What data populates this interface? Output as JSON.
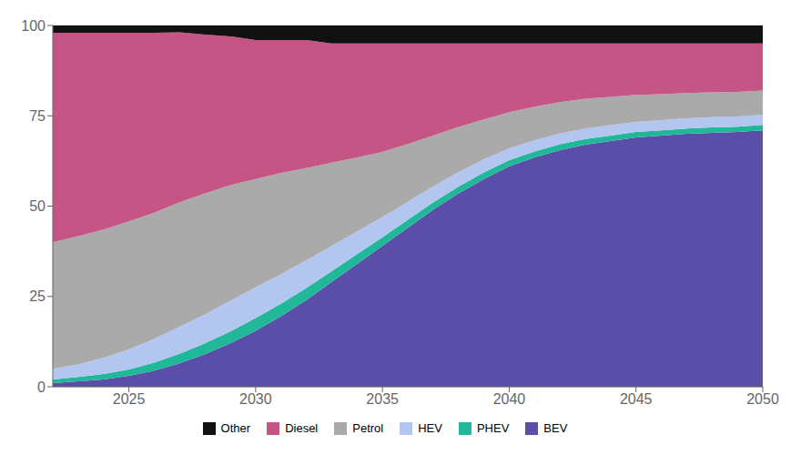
{
  "chart_data": {
    "type": "area",
    "stacked": true,
    "x": [
      2022,
      2023,
      2024,
      2025,
      2026,
      2027,
      2028,
      2029,
      2030,
      2031,
      2032,
      2033,
      2034,
      2035,
      2036,
      2037,
      2038,
      2039,
      2040,
      2041,
      2042,
      2043,
      2044,
      2045,
      2046,
      2047,
      2048,
      2049,
      2050
    ],
    "series": [
      {
        "name": "BEV",
        "color": "#5b4ea8",
        "values": [
          1.0,
          1.5,
          2.0,
          3.0,
          4.5,
          6.5,
          9.0,
          12.0,
          15.5,
          19.5,
          24.0,
          29.0,
          34.0,
          39.0,
          44.0,
          49.0,
          53.5,
          57.5,
          61.0,
          63.5,
          65.5,
          67.0,
          68.0,
          69.0,
          69.5,
          70.0,
          70.3,
          70.5,
          71.0
        ]
      },
      {
        "name": "PHEV",
        "color": "#20b899",
        "values": [
          1.0,
          1.2,
          1.5,
          1.8,
          2.2,
          2.6,
          3.0,
          3.3,
          3.5,
          3.5,
          3.3,
          3.0,
          2.7,
          2.4,
          2.2,
          2.0,
          1.9,
          1.8,
          1.7,
          1.6,
          1.6,
          1.6,
          1.5,
          1.5,
          1.5,
          1.5,
          1.5,
          1.5,
          1.5
        ]
      },
      {
        "name": "HEV",
        "color": "#b3c6f0",
        "values": [
          3.0,
          3.5,
          4.5,
          5.5,
          6.5,
          7.5,
          8.0,
          8.5,
          8.5,
          8.2,
          7.7,
          7.0,
          6.3,
          5.6,
          5.0,
          4.5,
          4.0,
          3.7,
          3.3,
          3.1,
          3.0,
          2.9,
          2.9,
          2.8,
          2.8,
          2.8,
          2.8,
          2.8,
          2.8
        ]
      },
      {
        "name": "Petrol",
        "color": "#aaaaaa",
        "values": [
          35.0,
          35.5,
          35.5,
          35.5,
          35.0,
          34.5,
          33.5,
          32.0,
          30.0,
          28.0,
          25.5,
          23.0,
          20.5,
          18.0,
          16.0,
          14.0,
          12.5,
          11.0,
          10.0,
          9.3,
          8.7,
          8.2,
          7.8,
          7.5,
          7.2,
          7.0,
          6.9,
          6.8,
          6.7
        ]
      },
      {
        "name": "Diesel",
        "color": "#c45585",
        "values": [
          58.0,
          56.3,
          54.5,
          52.2,
          49.8,
          47.0,
          44.0,
          41.2,
          38.5,
          36.8,
          35.5,
          33.0,
          31.5,
          30.0,
          27.8,
          25.5,
          23.1,
          21.0,
          19.0,
          17.5,
          16.2,
          15.3,
          14.8,
          14.2,
          14.0,
          13.7,
          13.5,
          13.4,
          13.0
        ]
      },
      {
        "name": "Other",
        "color": "#111111",
        "values": [
          2.0,
          2.0,
          2.0,
          2.0,
          2.0,
          1.9,
          2.5,
          3.0,
          4.0,
          4.0,
          4.0,
          5.0,
          5.0,
          5.0,
          5.0,
          5.0,
          5.0,
          5.0,
          5.0,
          5.0,
          5.0,
          5.0,
          5.0,
          5.0,
          5.0,
          5.0,
          5.0,
          5.0,
          5.0
        ]
      }
    ],
    "xlim": [
      2022,
      2050
    ],
    "xticks": [
      2025,
      2030,
      2035,
      2040,
      2045,
      2050
    ],
    "ylim": [
      0,
      100
    ],
    "yticks": [
      0,
      25,
      50,
      75,
      100
    ],
    "grid": true,
    "legend": "bottom"
  }
}
